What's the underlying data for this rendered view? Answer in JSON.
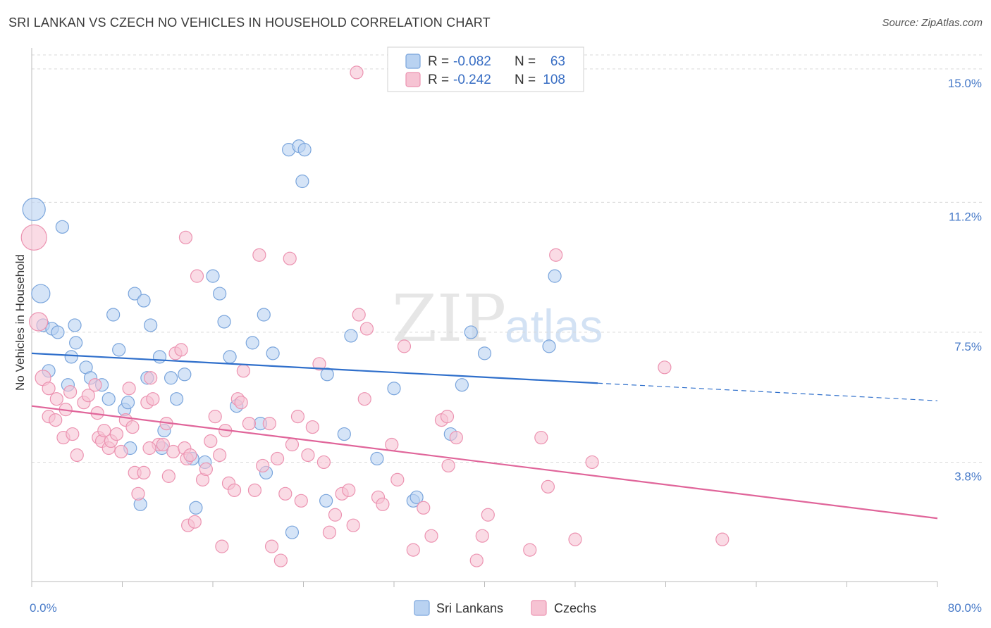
{
  "title": "SRI LANKAN VS CZECH NO VEHICLES IN HOUSEHOLD CORRELATION CHART",
  "source": "Source: ZipAtlas.com",
  "watermark": {
    "zip": "ZIP",
    "atlas": "atlas"
  },
  "colors": {
    "blue_fill": "#b9d2f1",
    "blue_stroke": "#7aa5dc",
    "blue_line": "#2f6fcb",
    "pink_fill": "#f6c3d3",
    "pink_stroke": "#ec93b1",
    "pink_line": "#e0659a"
  },
  "legend": {
    "rows": [
      {
        "r_label": "R =",
        "r_value": "-0.082",
        "n_label": "N =",
        "n_value": "63"
      },
      {
        "r_label": "R =",
        "r_value": "-0.242",
        "n_label": "N =",
        "n_value": "108"
      }
    ]
  },
  "bottom_legend": [
    "Sri Lankans",
    "Czechs"
  ],
  "chart_data": {
    "type": "scatter",
    "xlabel": "",
    "ylabel": "No Vehicles in Household",
    "xlim": [
      0,
      80
    ],
    "ylim": [
      0.4,
      15.6
    ],
    "x_tick_labels": [
      "0.0%",
      "80.0%"
    ],
    "y_ticks": [
      3.8,
      7.5,
      11.2,
      15.0
    ],
    "y_tick_labels": [
      "3.8%",
      "7.5%",
      "11.2%",
      "15.0%"
    ],
    "grid": true,
    "legend_position": "top-center",
    "series": [
      {
        "name": "Sri Lankans",
        "trend": {
          "x_start": 0,
          "y_start": 6.9,
          "x_solid_end": 50,
          "y_solid_end": 6.05,
          "x_end": 80,
          "y_end": 5.55
        },
        "points": [
          [
            0.2,
            11.0,
            16
          ],
          [
            0.8,
            8.6,
            13
          ],
          [
            2.7,
            10.5,
            9
          ],
          [
            1.0,
            7.7,
            9
          ],
          [
            1.8,
            7.6,
            9
          ],
          [
            2.3,
            7.5,
            9
          ],
          [
            3.8,
            7.7,
            9
          ],
          [
            3.9,
            7.2,
            9
          ],
          [
            1.5,
            6.4,
            9
          ],
          [
            3.2,
            6.0,
            9
          ],
          [
            3.5,
            6.8,
            9
          ],
          [
            4.8,
            6.5,
            9
          ],
          [
            5.2,
            6.2,
            9
          ],
          [
            6.2,
            6.0,
            9
          ],
          [
            6.8,
            5.6,
            9
          ],
          [
            7.7,
            7.0,
            9
          ],
          [
            8.2,
            5.3,
            9
          ],
          [
            8.5,
            5.5,
            9
          ],
          [
            7.2,
            8.0,
            9
          ],
          [
            9.1,
            8.6,
            9
          ],
          [
            9.9,
            8.4,
            9
          ],
          [
            10.5,
            7.7,
            9
          ],
          [
            10.2,
            6.2,
            9
          ],
          [
            11.3,
            6.8,
            9
          ],
          [
            12.3,
            6.2,
            9
          ],
          [
            12.8,
            5.6,
            9
          ],
          [
            13.5,
            6.3,
            9
          ],
          [
            16.0,
            9.1,
            9
          ],
          [
            16.6,
            8.6,
            9
          ],
          [
            17.0,
            7.8,
            9
          ],
          [
            17.5,
            6.8,
            9
          ],
          [
            18.1,
            5.4,
            9
          ],
          [
            19.5,
            7.2,
            9
          ],
          [
            20.5,
            8.0,
            9
          ],
          [
            21.3,
            6.9,
            9
          ],
          [
            22.7,
            12.7,
            9
          ],
          [
            23.6,
            12.8,
            9
          ],
          [
            23.9,
            11.8,
            9
          ],
          [
            24.1,
            12.7,
            9
          ],
          [
            14.2,
            3.9,
            9
          ],
          [
            15.3,
            3.8,
            9
          ],
          [
            14.5,
            2.5,
            9
          ],
          [
            11.5,
            4.2,
            9
          ],
          [
            11.7,
            4.7,
            9
          ],
          [
            8.7,
            4.2,
            9
          ],
          [
            9.6,
            2.6,
            9
          ],
          [
            20.2,
            4.9,
            9
          ],
          [
            20.7,
            3.5,
            9
          ],
          [
            23.0,
            1.8,
            9
          ],
          [
            26.1,
            6.3,
            9
          ],
          [
            27.6,
            4.6,
            9
          ],
          [
            28.2,
            7.4,
            9
          ],
          [
            26.0,
            2.7,
            9
          ],
          [
            32.0,
            5.9,
            9
          ],
          [
            33.7,
            2.7,
            9
          ],
          [
            37.0,
            4.6,
            9
          ],
          [
            38.0,
            6.0,
            9
          ],
          [
            38.8,
            7.5,
            9
          ],
          [
            40.0,
            6.9,
            9
          ],
          [
            45.7,
            7.1,
            9
          ],
          [
            46.2,
            9.1,
            9
          ],
          [
            30.5,
            3.9,
            9
          ],
          [
            34.0,
            2.8,
            9
          ]
        ]
      },
      {
        "name": "Czechs",
        "trend": {
          "x_start": 0,
          "y_start": 5.4,
          "x_end": 80,
          "y_end": 2.2
        },
        "points": [
          [
            0.2,
            10.2,
            18
          ],
          [
            0.6,
            7.8,
            13
          ],
          [
            1.0,
            6.2,
            11
          ],
          [
            1.5,
            5.9,
            9
          ],
          [
            1.5,
            5.1,
            9
          ],
          [
            2.1,
            5.0,
            9
          ],
          [
            2.2,
            5.6,
            9
          ],
          [
            2.8,
            4.5,
            9
          ],
          [
            3.0,
            5.3,
            9
          ],
          [
            3.4,
            5.8,
            9
          ],
          [
            3.6,
            4.6,
            9
          ],
          [
            4.0,
            4.0,
            9
          ],
          [
            4.6,
            5.5,
            9
          ],
          [
            5.0,
            5.7,
            9
          ],
          [
            5.6,
            6.0,
            9
          ],
          [
            5.8,
            5.2,
            9
          ],
          [
            5.9,
            4.5,
            9
          ],
          [
            6.2,
            4.4,
            9
          ],
          [
            6.4,
            4.7,
            9
          ],
          [
            6.8,
            4.2,
            9
          ],
          [
            7.0,
            4.4,
            9
          ],
          [
            7.5,
            4.6,
            9
          ],
          [
            7.9,
            4.1,
            9
          ],
          [
            8.3,
            5.0,
            9
          ],
          [
            8.6,
            5.9,
            9
          ],
          [
            8.9,
            4.8,
            9
          ],
          [
            9.1,
            3.5,
            9
          ],
          [
            9.4,
            2.9,
            9
          ],
          [
            9.9,
            3.5,
            9
          ],
          [
            10.2,
            5.5,
            9
          ],
          [
            10.5,
            6.2,
            9
          ],
          [
            10.7,
            5.6,
            9
          ],
          [
            11.2,
            4.3,
            9
          ],
          [
            11.6,
            4.3,
            9
          ],
          [
            11.9,
            4.9,
            9
          ],
          [
            12.1,
            3.4,
            9
          ],
          [
            12.5,
            4.1,
            9
          ],
          [
            12.7,
            6.9,
            9
          ],
          [
            13.2,
            7.0,
            9
          ],
          [
            13.5,
            4.2,
            9
          ],
          [
            13.7,
            3.9,
            9
          ],
          [
            14.0,
            4.0,
            9
          ],
          [
            13.8,
            2.0,
            9
          ],
          [
            14.4,
            2.1,
            9
          ],
          [
            13.6,
            10.2,
            9
          ],
          [
            14.6,
            9.1,
            9
          ],
          [
            15.1,
            3.3,
            9
          ],
          [
            15.4,
            3.6,
            9
          ],
          [
            15.8,
            4.4,
            9
          ],
          [
            16.2,
            5.1,
            9
          ],
          [
            16.6,
            4.0,
            9
          ],
          [
            16.8,
            1.4,
            9
          ],
          [
            17.1,
            4.7,
            9
          ],
          [
            17.4,
            3.2,
            9
          ],
          [
            17.9,
            3.0,
            9
          ],
          [
            18.2,
            5.6,
            9
          ],
          [
            18.5,
            5.5,
            9
          ],
          [
            18.7,
            6.4,
            9
          ],
          [
            19.2,
            4.9,
            9
          ],
          [
            19.7,
            3.0,
            9
          ],
          [
            20.1,
            9.7,
            9
          ],
          [
            20.4,
            3.7,
            9
          ],
          [
            21.0,
            4.9,
            9
          ],
          [
            21.2,
            1.4,
            9
          ],
          [
            21.7,
            3.9,
            9
          ],
          [
            22.0,
            1.0,
            9
          ],
          [
            22.4,
            2.9,
            9
          ],
          [
            23.0,
            4.3,
            9
          ],
          [
            23.5,
            5.1,
            9
          ],
          [
            23.8,
            2.7,
            9
          ],
          [
            22.8,
            9.6,
            9
          ],
          [
            24.8,
            4.8,
            9
          ],
          [
            25.4,
            6.6,
            9
          ],
          [
            25.8,
            3.8,
            9
          ],
          [
            26.3,
            1.8,
            9
          ],
          [
            26.8,
            2.3,
            9
          ],
          [
            27.4,
            2.9,
            9
          ],
          [
            28.4,
            2.0,
            9
          ],
          [
            28.0,
            3.0,
            9
          ],
          [
            28.9,
            8.0,
            9
          ],
          [
            29.4,
            5.6,
            9
          ],
          [
            29.6,
            7.6,
            9
          ],
          [
            30.6,
            2.8,
            9
          ],
          [
            31.0,
            2.6,
            9
          ],
          [
            31.8,
            4.3,
            9
          ],
          [
            32.3,
            3.3,
            9
          ],
          [
            32.9,
            7.1,
            9
          ],
          [
            33.7,
            1.3,
            9
          ],
          [
            34.6,
            2.5,
            9
          ],
          [
            35.3,
            1.7,
            9
          ],
          [
            36.2,
            5.0,
            9
          ],
          [
            36.7,
            5.1,
            9
          ],
          [
            37.5,
            4.5,
            9
          ],
          [
            28.7,
            14.9,
            9
          ],
          [
            39.3,
            1.0,
            9
          ],
          [
            39.8,
            1.7,
            9
          ],
          [
            40.3,
            2.3,
            9
          ],
          [
            44.0,
            1.3,
            9
          ],
          [
            45.0,
            4.5,
            9
          ],
          [
            45.6,
            3.1,
            9
          ],
          [
            46.3,
            9.7,
            9
          ],
          [
            48.0,
            1.6,
            9
          ],
          [
            49.5,
            3.8,
            9
          ],
          [
            55.9,
            6.5,
            9
          ],
          [
            61.0,
            1.6,
            9
          ],
          [
            10.4,
            4.2,
            9
          ],
          [
            24.4,
            4.0,
            9
          ],
          [
            36.8,
            3.7,
            9
          ]
        ]
      }
    ]
  }
}
